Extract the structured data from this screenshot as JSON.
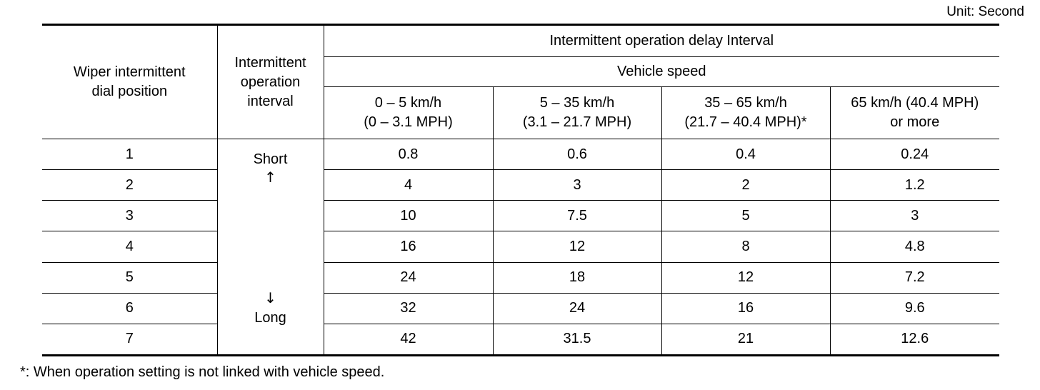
{
  "unit_label": "Unit: Second",
  "header": {
    "dial_position": [
      "Wiper intermittent",
      "dial position"
    ],
    "operation_interval": [
      "Intermittent",
      "operation",
      "interval"
    ],
    "delay_interval": "Intermittent operation delay Interval",
    "vehicle_speed": "Vehicle speed",
    "speed_columns": [
      [
        "0 – 5 km/h",
        "(0 – 3.1 MPH)"
      ],
      [
        "5 – 35 km/h",
        "(3.1 – 21.7 MPH)"
      ],
      [
        "35 – 65 km/h",
        "(21.7 – 40.4 MPH)*"
      ],
      [
        "65 km/h (40.4 MPH)",
        "or more"
      ]
    ]
  },
  "interval_labels": {
    "short": "Short",
    "up_arrow": "↑",
    "down_arrow": "↓",
    "long": "Long"
  },
  "rows": [
    {
      "position": "1",
      "values": [
        "0.8",
        "0.6",
        "0.4",
        "0.24"
      ]
    },
    {
      "position": "2",
      "values": [
        "4",
        "3",
        "2",
        "1.2"
      ]
    },
    {
      "position": "3",
      "values": [
        "10",
        "7.5",
        "5",
        "3"
      ]
    },
    {
      "position": "4",
      "values": [
        "16",
        "12",
        "8",
        "4.8"
      ]
    },
    {
      "position": "5",
      "values": [
        "24",
        "18",
        "12",
        "7.2"
      ]
    },
    {
      "position": "6",
      "values": [
        "32",
        "24",
        "16",
        "9.6"
      ]
    },
    {
      "position": "7",
      "values": [
        "42",
        "31.5",
        "21",
        "12.6"
      ]
    }
  ],
  "footnote": "*: When operation setting is not linked with vehicle speed."
}
